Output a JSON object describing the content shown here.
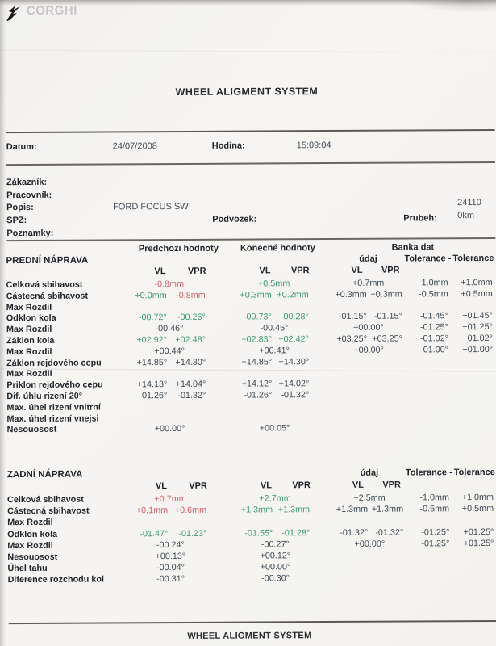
{
  "colors": {
    "red": "#cf5f66",
    "green": "#3f9878",
    "dark_value": "#3e4a55",
    "label": "#21262c",
    "logo_gray": "#c9c3c6"
  },
  "logo": {
    "brand": "CORGHI"
  },
  "titles": {
    "header": "WHEEL ALIGMENT SYSTEM",
    "footer": "WHEEL ALIGMENT SYSTEM"
  },
  "info": {
    "datum_label": "Datum:",
    "datum_value": "24/07/2008",
    "hodina_label": "Hodina:",
    "hodina_value": "15:09:04"
  },
  "customer": {
    "zakaznik_label": "Zákazník:",
    "pracovnik_label": "Pracovník:",
    "popis_label": "Popis:",
    "popis_value": "FORD FOCUS SW",
    "spz_label": "SPZ:",
    "podvozek_label": "Podvozek:",
    "poznamky_label": "Poznamky:",
    "prubeh_label": "Prubeh:",
    "prubeh_value_top": "24110",
    "prubeh_value_bottom": "0km"
  },
  "table_headers": {
    "prev": "Predchozi hodnoty",
    "final": "Konecné hodnoty",
    "bank": "Banka dat",
    "udaj": "údaj",
    "tol_minus": "Tolerance -",
    "tol_plus": "Tolerance",
    "vl": "VL",
    "vpr": "VPR"
  },
  "front_axle": {
    "title": "PREDNÍ NÁPRAVA",
    "rows": [
      {
        "label": "Celková sbihavost",
        "prev": [
          [
            "-0.8mm",
            "r"
          ]
        ],
        "final": [
          [
            "+0.5mm",
            "g"
          ]
        ],
        "bank": [
          [
            "+0.7mm",
            "k"
          ]
        ],
        "tol_minus": "-1.0mm",
        "tol_plus": "+1.0mm"
      },
      {
        "label": "Cástecná sbihavost",
        "prev": [
          [
            "+0.0mm",
            "g"
          ],
          [
            "-0.8mm",
            "r"
          ]
        ],
        "final": [
          [
            "+0.3mm",
            "g"
          ],
          [
            "+0.2mm",
            "g"
          ]
        ],
        "bank": [
          [
            "+0.3mm",
            "k"
          ],
          [
            "+0.3mm",
            "k"
          ]
        ],
        "tol_minus": "-0.5mm",
        "tol_plus": "+0.5mm"
      },
      {
        "label": "Max Rozdil",
        "prev": [],
        "final": [],
        "bank": [],
        "tol_minus": "",
        "tol_plus": ""
      },
      {
        "label": "Odklon kola",
        "prev": [
          [
            "-00.72°",
            "g"
          ],
          [
            "-00.26°",
            "g"
          ]
        ],
        "final": [
          [
            "-00.73°",
            "g"
          ],
          [
            "-00.28°",
            "g"
          ]
        ],
        "bank": [
          [
            "-01.15°",
            "k"
          ],
          [
            "-01.15°",
            "k"
          ]
        ],
        "tol_minus": "-01.45°",
        "tol_plus": "+01.45°"
      },
      {
        "label": "Max Rozdil",
        "prev": [
          [
            "-00.46°",
            "k"
          ]
        ],
        "final": [
          [
            "-00.45°",
            "k"
          ]
        ],
        "bank": [
          [
            "+00.00°",
            "k"
          ]
        ],
        "tol_minus": "-01.25°",
        "tol_plus": "+01.25°"
      },
      {
        "label": "Záklon kola",
        "prev": [
          [
            "+02.92°",
            "g"
          ],
          [
            "+02.48°",
            "g"
          ]
        ],
        "final": [
          [
            "+02.83°",
            "g"
          ],
          [
            "+02.42°",
            "g"
          ]
        ],
        "bank": [
          [
            "+03.25°",
            "k"
          ],
          [
            "+03.25°",
            "k"
          ]
        ],
        "tol_minus": "-01.02°",
        "tol_plus": "+01.02°"
      },
      {
        "label": "Max Rozdil",
        "prev": [
          [
            "+00.44°",
            "k"
          ]
        ],
        "final": [
          [
            "+00.41°",
            "k"
          ]
        ],
        "bank": [
          [
            "+00.00°",
            "k"
          ]
        ],
        "tol_minus": "-01.00°",
        "tol_plus": "+01.00°"
      },
      {
        "label": "Záklon rejdového cepu",
        "prev": [
          [
            "+14.85°",
            "k"
          ],
          [
            "+14.30°",
            "k"
          ]
        ],
        "final": [
          [
            "+14.85°",
            "k"
          ],
          [
            "+14.30°",
            "k"
          ]
        ],
        "bank": [],
        "tol_minus": "",
        "tol_plus": ""
      },
      {
        "label": "Max Rozdil",
        "prev": [],
        "final": [],
        "bank": [],
        "tol_minus": "",
        "tol_plus": ""
      },
      {
        "label": "Priklon rejdového cepu",
        "prev": [
          [
            "+14.13°",
            "k"
          ],
          [
            "+14.04°",
            "k"
          ]
        ],
        "final": [
          [
            "+14.12°",
            "k"
          ],
          [
            "+14.02°",
            "k"
          ]
        ],
        "bank": [],
        "tol_minus": "",
        "tol_plus": ""
      },
      {
        "label": "Dif. úhlu rizení 20°",
        "prev": [
          [
            "-01.26°",
            "k"
          ],
          [
            "-01.32°",
            "k"
          ]
        ],
        "final": [
          [
            "-01.26°",
            "k"
          ],
          [
            "-01.32°",
            "k"
          ]
        ],
        "bank": [],
        "tol_minus": "",
        "tol_plus": ""
      },
      {
        "label": "Max. úhel rizení vnitrní",
        "prev": [],
        "final": [],
        "bank": [],
        "tol_minus": "",
        "tol_plus": ""
      },
      {
        "label": "Max. úhel rizení vnejsi",
        "prev": [],
        "final": [],
        "bank": [],
        "tol_minus": "",
        "tol_plus": ""
      },
      {
        "label": "Nesouosost",
        "prev": [
          [
            "+00.00°",
            "k"
          ]
        ],
        "final": [
          [
            "+00.05°",
            "k"
          ]
        ],
        "bank": [],
        "tol_minus": "",
        "tol_plus": ""
      }
    ]
  },
  "rear_axle": {
    "title": "ZADNÍ NÁPRAVA",
    "rows": [
      {
        "label": "Celková sbihavost",
        "prev": [
          [
            "+0.7mm",
            "r"
          ]
        ],
        "final": [
          [
            "+2.7mm",
            "g"
          ]
        ],
        "bank": [
          [
            "+2.5mm",
            "k"
          ]
        ],
        "tol_minus": "-1.0mm",
        "tol_plus": "+1.0mm"
      },
      {
        "label": "Cástecná sbihavost",
        "prev": [
          [
            "+0.1mm",
            "r"
          ],
          [
            "+0.6mm",
            "r"
          ]
        ],
        "final": [
          [
            "+1.3mm",
            "g"
          ],
          [
            "+1.3mm",
            "g"
          ]
        ],
        "bank": [
          [
            "+1.3mm",
            "k"
          ],
          [
            "+1.3mm",
            "k"
          ]
        ],
        "tol_minus": "-0.5mm",
        "tol_plus": "+0.5mm"
      },
      {
        "label": "Max Rozdil",
        "prev": [],
        "final": [],
        "bank": [],
        "tol_minus": "",
        "tol_plus": ""
      },
      {
        "label": "Odklon kola",
        "prev": [
          [
            "-01.47°",
            "g"
          ],
          [
            "-01.23°",
            "g"
          ]
        ],
        "final": [
          [
            "-01.55°",
            "g"
          ],
          [
            "-01.28°",
            "g"
          ]
        ],
        "bank": [
          [
            "-01.32°",
            "k"
          ],
          [
            "-01.32°",
            "k"
          ]
        ],
        "tol_minus": "-01.25°",
        "tol_plus": "+01.25°"
      },
      {
        "label": "Max Rozdil",
        "prev": [
          [
            "-00.24°",
            "k"
          ]
        ],
        "final": [
          [
            "-00.27°",
            "k"
          ]
        ],
        "bank": [
          [
            "+00.00°",
            "k"
          ]
        ],
        "tol_minus": "-01.25°",
        "tol_plus": "+01.25°"
      },
      {
        "label": "Nesouosost",
        "prev": [
          [
            "+00.13°",
            "k"
          ]
        ],
        "final": [
          [
            "+00.12°",
            "k"
          ]
        ],
        "bank": [],
        "tol_minus": "",
        "tol_plus": ""
      },
      {
        "label": "Úhel tahu",
        "prev": [
          [
            "-00.04°",
            "k"
          ]
        ],
        "final": [
          [
            "+00.00°",
            "k"
          ]
        ],
        "bank": [],
        "tol_minus": "",
        "tol_plus": ""
      },
      {
        "label": "Diference rozchodu kol",
        "prev": [
          [
            "-00.31°",
            "k"
          ]
        ],
        "final": [
          [
            "-00.30°",
            "k"
          ]
        ],
        "bank": [],
        "tol_minus": "",
        "tol_plus": ""
      }
    ]
  }
}
